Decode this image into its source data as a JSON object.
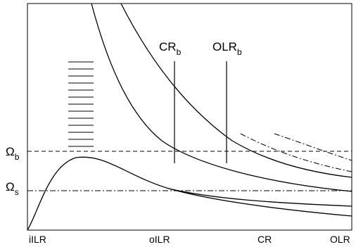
{
  "diagram": {
    "x_ticks": [
      "iILR",
      "oILR",
      "CR",
      "OLR"
    ],
    "levels": [
      {
        "symbol": "Ω",
        "subscript": "b",
        "style": "dashed"
      },
      {
        "symbol": "Ω",
        "subscript": "s",
        "style": "dash-dot"
      }
    ],
    "markers": [
      {
        "main": "CR",
        "subscript": "b"
      },
      {
        "main": "OLR",
        "subscript": "b"
      }
    ],
    "hatch_line_count": 13
  }
}
